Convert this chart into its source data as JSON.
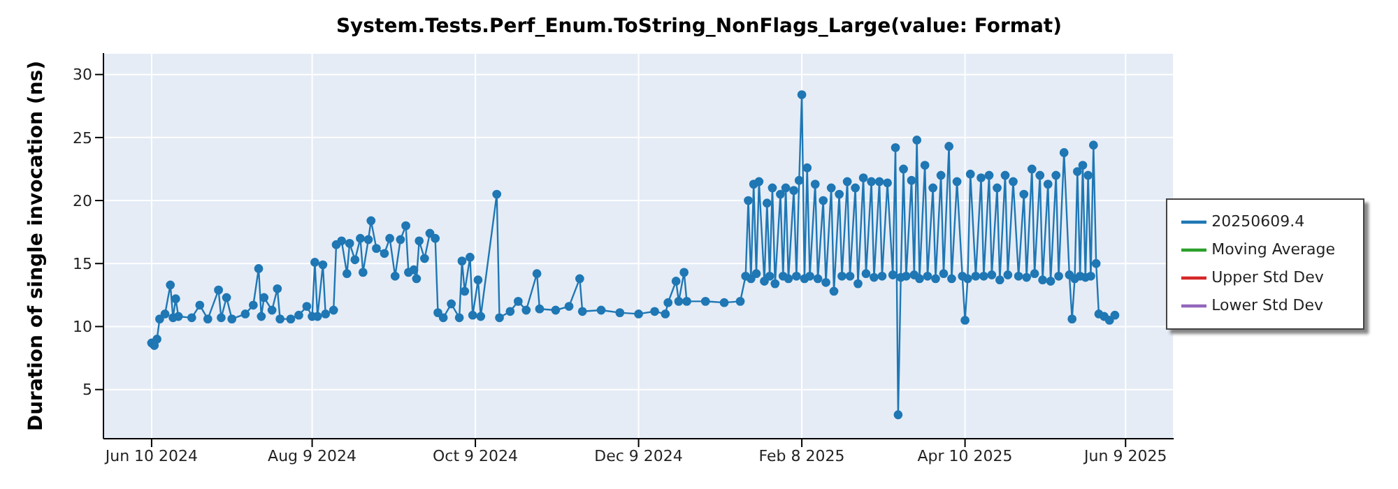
{
  "chart_data": {
    "type": "line",
    "title": "System.Tests.Perf_Enum.ToString_NonFlags_Large(value: Format)",
    "ylabel": "Duration of single invocation (ns)",
    "x": [
      "2024-06-10",
      "2024-06-11",
      "2024-06-12",
      "2024-06-13",
      "2024-06-15",
      "2024-06-17",
      "2024-06-18",
      "2024-06-19",
      "2024-06-20",
      "2024-06-25",
      "2024-06-28",
      "2024-07-01",
      "2024-07-05",
      "2024-07-06",
      "2024-07-08",
      "2024-07-10",
      "2024-07-15",
      "2024-07-18",
      "2024-07-20",
      "2024-07-21",
      "2024-07-22",
      "2024-07-25",
      "2024-07-27",
      "2024-07-28",
      "2024-08-01",
      "2024-08-04",
      "2024-08-07",
      "2024-08-09",
      "2024-08-10",
      "2024-08-11",
      "2024-08-13",
      "2024-08-14",
      "2024-08-17",
      "2024-08-18",
      "2024-08-20",
      "2024-08-22",
      "2024-08-23",
      "2024-08-25",
      "2024-08-27",
      "2024-08-28",
      "2024-08-30",
      "2024-08-31",
      "2024-09-02",
      "2024-09-05",
      "2024-09-07",
      "2024-09-09",
      "2024-09-11",
      "2024-09-13",
      "2024-09-14",
      "2024-09-16",
      "2024-09-17",
      "2024-09-18",
      "2024-09-20",
      "2024-09-22",
      "2024-09-24",
      "2024-09-25",
      "2024-09-27",
      "2024-09-30",
      "2024-10-03",
      "2024-10-04",
      "2024-10-05",
      "2024-10-07",
      "2024-10-08",
      "2024-10-10",
      "2024-10-11",
      "2024-10-17",
      "2024-10-18",
      "2024-10-22",
      "2024-10-25",
      "2024-10-28",
      "2024-11-01",
      "2024-11-02",
      "2024-11-08",
      "2024-11-13",
      "2024-11-17",
      "2024-11-18",
      "2024-11-25",
      "2024-12-02",
      "2024-12-09",
      "2024-12-15",
      "2024-12-19",
      "2024-12-20",
      "2024-12-23",
      "2024-12-24",
      "2024-12-26",
      "2024-12-27",
      "2025-01-03",
      "2025-01-10",
      "2025-01-16",
      "2025-01-18",
      "2025-01-19",
      "2025-01-20",
      "2025-01-21",
      "2025-01-22",
      "2025-01-23",
      "2025-01-25",
      "2025-01-26",
      "2025-01-27",
      "2025-01-28",
      "2025-01-29",
      "2025-01-31",
      "2025-02-01",
      "2025-02-02",
      "2025-02-03",
      "2025-02-05",
      "2025-02-06",
      "2025-02-07",
      "2025-02-08",
      "2025-02-09",
      "2025-02-10",
      "2025-02-11",
      "2025-02-13",
      "2025-02-14",
      "2025-02-16",
      "2025-02-17",
      "2025-02-19",
      "2025-02-20",
      "2025-02-22",
      "2025-02-23",
      "2025-02-25",
      "2025-02-26",
      "2025-02-28",
      "2025-03-01",
      "2025-03-03",
      "2025-03-04",
      "2025-03-06",
      "2025-03-07",
      "2025-03-09",
      "2025-03-10",
      "2025-03-12",
      "2025-03-14",
      "2025-03-15",
      "2025-03-16",
      "2025-03-17",
      "2025-03-18",
      "2025-03-19",
      "2025-03-21",
      "2025-03-22",
      "2025-03-23",
      "2025-03-24",
      "2025-03-26",
      "2025-03-27",
      "2025-03-29",
      "2025-03-30",
      "2025-04-01",
      "2025-04-02",
      "2025-04-04",
      "2025-04-05",
      "2025-04-07",
      "2025-04-09",
      "2025-04-10",
      "2025-04-11",
      "2025-04-12",
      "2025-04-14",
      "2025-04-16",
      "2025-04-17",
      "2025-04-19",
      "2025-04-20",
      "2025-04-22",
      "2025-04-23",
      "2025-04-25",
      "2025-04-26",
      "2025-04-28",
      "2025-04-30",
      "2025-05-02",
      "2025-05-03",
      "2025-05-05",
      "2025-05-06",
      "2025-05-08",
      "2025-05-09",
      "2025-05-11",
      "2025-05-12",
      "2025-05-14",
      "2025-05-15",
      "2025-05-17",
      "2025-05-19",
      "2025-05-20",
      "2025-05-21",
      "2025-05-22",
      "2025-05-23",
      "2025-05-24",
      "2025-05-25",
      "2025-05-26",
      "2025-05-27",
      "2025-05-28",
      "2025-05-29",
      "2025-05-30",
      "2025-06-01",
      "2025-06-03",
      "2025-06-05"
    ],
    "series": [
      {
        "name": "20250609.4",
        "color": "#1f77b4",
        "values": [
          8.7,
          8.5,
          9.0,
          10.6,
          11.0,
          13.3,
          10.7,
          12.2,
          10.8,
          10.7,
          11.7,
          10.6,
          12.9,
          10.7,
          12.3,
          10.6,
          11.0,
          11.7,
          14.6,
          10.8,
          12.3,
          11.3,
          13.0,
          10.6,
          10.6,
          10.9,
          11.6,
          10.8,
          15.1,
          10.8,
          14.9,
          11.0,
          11.3,
          16.5,
          16.8,
          14.2,
          16.6,
          15.3,
          17.0,
          14.3,
          16.9,
          18.4,
          16.2,
          15.8,
          17.0,
          14.0,
          16.9,
          18.0,
          14.3,
          14.5,
          13.8,
          16.8,
          15.4,
          17.4,
          17.0,
          11.1,
          10.7,
          11.8,
          10.7,
          15.2,
          12.8,
          15.5,
          10.9,
          13.7,
          10.8,
          20.5,
          10.7,
          11.2,
          12.0,
          11.3,
          14.2,
          11.4,
          11.3,
          11.6,
          13.8,
          11.2,
          11.3,
          11.1,
          11.0,
          11.2,
          11.0,
          11.9,
          13.6,
          12.0,
          14.3,
          12.0,
          12.0,
          11.9,
          12.0,
          14.0,
          20.0,
          13.8,
          21.3,
          14.2,
          21.5,
          13.6,
          19.8,
          14.0,
          21.0,
          13.4,
          20.5,
          14.0,
          21.0,
          13.8,
          20.8,
          14.0,
          21.6,
          28.4,
          13.8,
          22.6,
          14.0,
          21.3,
          13.8,
          20.0,
          13.5,
          21.0,
          12.8,
          20.5,
          14.0,
          21.5,
          14.0,
          21.0,
          13.4,
          21.8,
          14.2,
          21.5,
          13.9,
          21.5,
          14.0,
          21.4,
          14.1,
          24.2,
          3.0,
          13.9,
          22.5,
          14.0,
          21.6,
          14.1,
          24.8,
          13.8,
          22.8,
          14.0,
          21.0,
          13.8,
          22.0,
          14.2,
          24.3,
          13.8,
          21.5,
          14.0,
          10.5,
          13.8,
          22.1,
          14.0,
          21.8,
          14.0,
          22.0,
          14.1,
          21.0,
          13.7,
          22.0,
          14.1,
          21.5,
          14.0,
          20.5,
          13.9,
          22.5,
          14.2,
          22.0,
          13.7,
          21.3,
          13.6,
          22.0,
          14.0,
          23.8,
          14.1,
          10.6,
          13.8,
          22.3,
          14.0,
          22.8,
          13.9,
          22.0,
          14.0,
          24.4,
          15.0,
          11.0,
          10.8,
          10.5,
          10.9
        ]
      },
      {
        "name": "Moving Average",
        "color": "#2ca02c",
        "values": [
          null,
          null,
          null,
          null,
          null,
          null,
          null,
          null,
          null,
          null,
          null,
          null,
          null,
          null,
          null,
          null,
          null,
          null,
          null,
          null,
          null,
          null,
          null,
          null,
          null,
          null,
          null,
          null,
          null,
          null,
          null,
          null,
          null,
          null,
          null,
          null,
          null,
          null,
          null,
          null,
          null,
          null,
          null,
          null,
          null,
          null,
          null,
          null,
          null,
          null,
          null,
          null,
          null,
          null,
          null,
          null,
          null,
          null,
          null,
          null,
          null,
          null,
          null,
          null,
          null,
          null,
          null,
          null,
          null,
          null,
          null,
          null,
          null,
          null,
          null,
          null,
          null,
          null,
          null,
          null,
          null,
          null,
          null,
          null,
          null,
          null,
          null,
          null,
          null,
          null,
          null,
          null,
          null,
          null,
          null,
          null,
          null,
          null,
          null,
          null,
          null,
          null,
          null,
          null,
          null,
          null,
          null,
          null,
          null,
          null,
          null,
          null,
          null,
          null,
          null,
          null,
          null,
          null,
          null,
          null,
          null,
          null,
          null,
          null,
          null,
          null,
          null,
          null,
          null,
          null,
          null,
          null,
          null,
          null,
          null,
          null,
          null,
          null,
          null,
          null,
          null,
          null,
          null,
          null,
          null,
          null,
          null,
          null,
          null,
          null,
          null,
          null,
          null,
          null,
          null,
          null,
          null,
          null,
          null,
          null,
          null,
          null,
          null,
          null,
          null,
          null,
          null,
          null,
          null,
          null,
          null,
          null,
          null,
          null,
          null,
          null,
          null,
          null,
          null,
          null,
          null,
          null,
          null,
          null,
          null,
          null,
          null,
          null,
          null,
          null
        ]
      },
      {
        "name": "Upper Std Dev",
        "color": "#d62728",
        "values": [
          null,
          null,
          null,
          null,
          null,
          null,
          null,
          null,
          null,
          null,
          null,
          null,
          null,
          null,
          null,
          null,
          null,
          null,
          null,
          null,
          null,
          null,
          null,
          null,
          null,
          null,
          null,
          null,
          null,
          null,
          null,
          null,
          null,
          null,
          null,
          null,
          null,
          null,
          null,
          null,
          null,
          null,
          null,
          null,
          null,
          null,
          null,
          null,
          null,
          null,
          null,
          null,
          null,
          null,
          null,
          null,
          null,
          null,
          null,
          null,
          null,
          null,
          null,
          null,
          null,
          null,
          null,
          null,
          null,
          null,
          null,
          null,
          null,
          null,
          null,
          null,
          null,
          null,
          null,
          null,
          null,
          null,
          null,
          null,
          null,
          null,
          null,
          null,
          null,
          null,
          null,
          null,
          null,
          null,
          null,
          null,
          null,
          null,
          null,
          null,
          null,
          null,
          null,
          null,
          null,
          null,
          null,
          null,
          null,
          null,
          null,
          null,
          null,
          null,
          null,
          null,
          null,
          null,
          null,
          null,
          null,
          null,
          null,
          null,
          null,
          null,
          null,
          null,
          null,
          null,
          null,
          null,
          null,
          null,
          null,
          null,
          null,
          null,
          null,
          null,
          null,
          null,
          null,
          null,
          null,
          null,
          null,
          null,
          null,
          null,
          null,
          null,
          null,
          null,
          null,
          null,
          null,
          null,
          null,
          null,
          null,
          null,
          null,
          null,
          null,
          null,
          null,
          null,
          null,
          null,
          null,
          null,
          null,
          null,
          null,
          null,
          null,
          null,
          null,
          null,
          null,
          null,
          null,
          null,
          null,
          null,
          null,
          null,
          null,
          null
        ]
      },
      {
        "name": "Lower Std Dev",
        "color": "#9467bd",
        "values": [
          null,
          null,
          null,
          null,
          null,
          null,
          null,
          null,
          null,
          null,
          null,
          null,
          null,
          null,
          null,
          null,
          null,
          null,
          null,
          null,
          null,
          null,
          null,
          null,
          null,
          null,
          null,
          null,
          null,
          null,
          null,
          null,
          null,
          null,
          null,
          null,
          null,
          null,
          null,
          null,
          null,
          null,
          null,
          null,
          null,
          null,
          null,
          null,
          null,
          null,
          null,
          null,
          null,
          null,
          null,
          null,
          null,
          null,
          null,
          null,
          null,
          null,
          null,
          null,
          null,
          null,
          null,
          null,
          null,
          null,
          null,
          null,
          null,
          null,
          null,
          null,
          null,
          null,
          null,
          null,
          null,
          null,
          null,
          null,
          null,
          null,
          null,
          null,
          null,
          null,
          null,
          null,
          null,
          null,
          null,
          null,
          null,
          null,
          null,
          null,
          null,
          null,
          null,
          null,
          null,
          null,
          null,
          null,
          null,
          null,
          null,
          null,
          null,
          null,
          null,
          null,
          null,
          null,
          null,
          null,
          null,
          null,
          null,
          null,
          null,
          null,
          null,
          null,
          null,
          null,
          null,
          null,
          null,
          null,
          null,
          null,
          null,
          null,
          null,
          null,
          null,
          null,
          null,
          null,
          null,
          null,
          null,
          null,
          null,
          null,
          null,
          null,
          null,
          null,
          null,
          null,
          null,
          null,
          null,
          null,
          null,
          null,
          null,
          null,
          null,
          null,
          null,
          null,
          null,
          null,
          null,
          null,
          null,
          null,
          null,
          null,
          null,
          null,
          null,
          null,
          null,
          null,
          null,
          null,
          null,
          null,
          null,
          null,
          null,
          null
        ]
      }
    ],
    "xlim": [
      "2024-05-23",
      "2025-06-27"
    ],
    "xticks": [
      {
        "value": "2024-06-10",
        "label": "Jun 10 2024"
      },
      {
        "value": "2024-08-09",
        "label": "Aug 9 2024"
      },
      {
        "value": "2024-10-09",
        "label": "Oct 9 2024"
      },
      {
        "value": "2024-12-09",
        "label": "Dec 9 2024"
      },
      {
        "value": "2025-02-08",
        "label": "Feb 8 2025"
      },
      {
        "value": "2025-04-10",
        "label": "Apr 10 2025"
      },
      {
        "value": "2025-06-09",
        "label": "Jun 9 2025"
      }
    ],
    "ylim": [
      1.1,
      31.7
    ],
    "yticks": [
      5,
      10,
      15,
      20,
      25,
      30
    ],
    "grid": true,
    "legend": "right",
    "marker": "circle",
    "line_style": "solid"
  }
}
